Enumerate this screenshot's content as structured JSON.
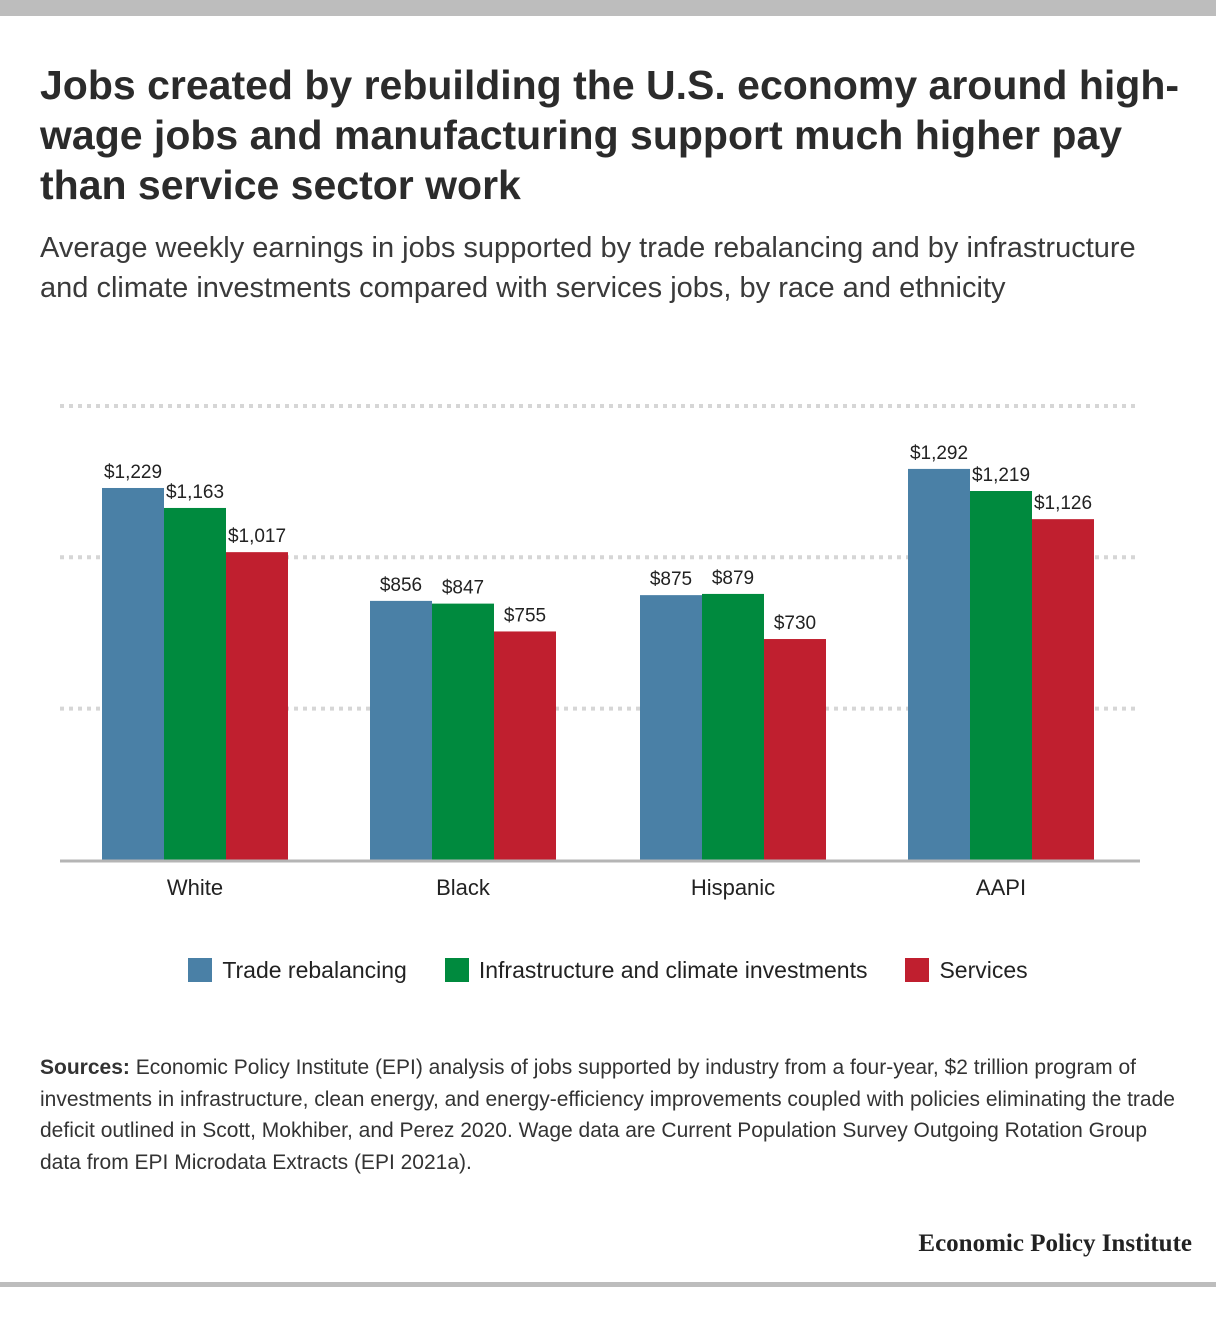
{
  "header": {
    "title": "Jobs created by rebuilding the U.S. economy around high-wage jobs and manufacturing support much higher pay than service sector work",
    "subtitle": "Average weekly earnings in jobs supported by trade rebalancing and by infrastructure and climate investments compared with services jobs, by race and ethnicity"
  },
  "chart_data": {
    "type": "bar",
    "categories": [
      "White",
      "Black",
      "Hispanic",
      "AAPI"
    ],
    "series": [
      {
        "name": "Trade rebalancing",
        "color": "#4a80a6",
        "values": [
          1229,
          856,
          875,
          1292
        ],
        "labels": [
          "$1,229",
          "$856",
          "$875",
          "$1,292"
        ]
      },
      {
        "name": "Infrastructure and climate investments",
        "color": "#008a3e",
        "values": [
          1163,
          847,
          879,
          1219
        ],
        "labels": [
          "$1,163",
          "$847",
          "$879",
          "$1,219"
        ]
      },
      {
        "name": "Services",
        "color": "#c01f2f",
        "values": [
          1017,
          755,
          730,
          1126
        ],
        "labels": [
          "$1,017",
          "$755",
          "$730",
          "$1,126"
        ]
      }
    ],
    "ylim": [
      0,
      1500
    ],
    "yticks": [
      0,
      500,
      1000,
      1500
    ],
    "grid": true,
    "legend_position": "bottom"
  },
  "footer": {
    "sources_label": "Sources:",
    "sources_text": " Economic Policy Institute (EPI) analysis of jobs supported by industry from a four-year, $2 trillion program of investments in infrastructure, clean energy, and energy-efficiency improvements coupled with policies eliminating the trade deficit outlined in Scott, Mokhiber, and Perez 2020. Wage data are Current Population Survey Outgoing Rotation Group data from EPI Microdata Extracts (EPI 2021a).",
    "brand": "Economic Policy Institute"
  }
}
